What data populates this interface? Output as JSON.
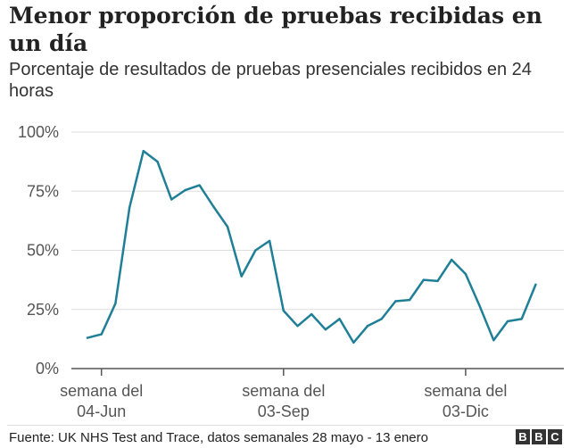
{
  "chart_data": {
    "type": "line",
    "title": "Menor proporción de pruebas recibidas en un día",
    "subtitle": "Porcentaje de resultados de pruebas presenciales recibidos en 24 horas",
    "xlabel": "",
    "ylabel": "",
    "ylim": [
      0,
      100
    ],
    "y_ticks": [
      0,
      25,
      50,
      75,
      100
    ],
    "y_tick_labels": [
      "0%",
      "25%",
      "50%",
      "75%",
      "100%"
    ],
    "x_tick_labels": [
      {
        "index": 1,
        "line1": "semana del",
        "line2": "04-Jun"
      },
      {
        "index": 14,
        "line1": "semana del",
        "line2": "03-Sep"
      },
      {
        "index": 27,
        "line1": "semana del",
        "line2": "03-Dic"
      }
    ],
    "grid": true,
    "line_color": "#1f7f96",
    "series": [
      {
        "values": [
          13,
          14.5,
          27.5,
          68,
          92,
          87.5,
          71.5,
          75.5,
          77.5,
          68.5,
          60,
          39,
          50,
          54,
          24.5,
          18,
          23,
          16.5,
          21,
          11,
          18,
          21,
          28.5,
          29,
          37.5,
          37,
          46,
          40,
          26.5,
          12,
          20,
          21,
          35.5
        ]
      }
    ]
  },
  "footer": {
    "source": "Fuente: UK NHS Test and Trace, datos semanales 28 mayo - 13 enero",
    "logo_letters": [
      "B",
      "B",
      "C"
    ]
  }
}
